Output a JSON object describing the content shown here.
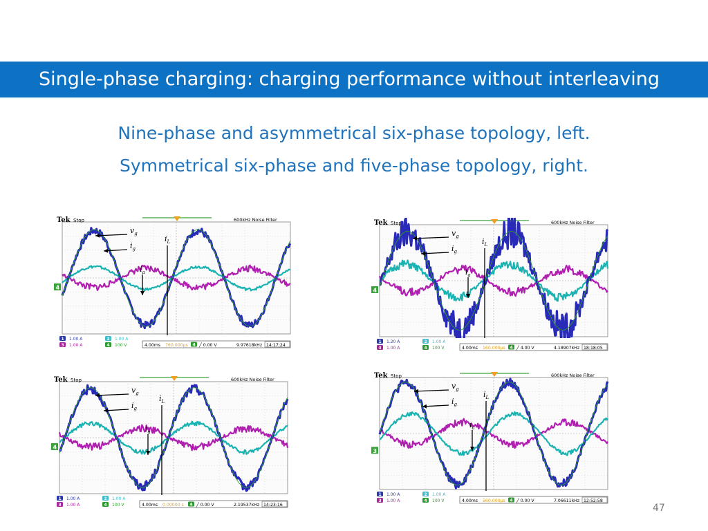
{
  "slide": {
    "title": "Single-phase charging: charging performance without interleaving",
    "subtitle_line1": "Nine-phase and asymmetrical six-phase topology, left.",
    "subtitle_line2": "Symmetrical six-phase and five-phase topology, right.",
    "page_number": "47"
  },
  "colors": {
    "title_bar": "#0e72c4",
    "subtitle_text": "#1f73bd",
    "trace_vg": "#2a2ab8",
    "trace_ig": "#1bb2b2",
    "trace_iL": "#b01fb0",
    "marker_outline": "#3a9a3a"
  },
  "scopes": [
    {
      "id": "top-left",
      "brand": "Tek",
      "state": "Stop",
      "filter": "600kHz  Noise Filter",
      "labels": {
        "vg": "v",
        "vg_sub": "g",
        "ig": "i",
        "ig_sub": "g",
        "iL": "i",
        "iL_sub": "L",
        "ia": "i",
        "ia_sub": "a"
      },
      "ch1": "1.00 A",
      "ch2": "1.00 A",
      "ch3": "1.00 A",
      "ch4": "100 V",
      "timebase": "4.00ms",
      "trigger_pos": "760.000μs",
      "trigger_level": "0.00 V",
      "frequency": "9.97618kHz",
      "time": "14:17:24",
      "ref_marker": "4"
    },
    {
      "id": "top-right",
      "brand": "Tek",
      "state": "Stop",
      "filter": "600kHz  Noise Filter",
      "labels": {
        "vg": "v",
        "vg_sub": "g",
        "ig": "i",
        "ig_sub": "g",
        "iL": "i",
        "iL_sub": "L",
        "ia": "i",
        "ia_sub": "a"
      },
      "ch1": "1.20 A",
      "ch2": "1.00 A",
      "ch3": "1.00 A",
      "ch4": "100 V",
      "timebase": "4.00ms",
      "trigger_pos": "160.000μs",
      "trigger_level": "4.00 V",
      "frequency": "4.18907kHz",
      "time": "18:18:05",
      "ref_marker": "4"
    },
    {
      "id": "bottom-left",
      "brand": "Tek",
      "state": "Stop",
      "filter": "600kHz  Noise Filter",
      "labels": {
        "vg": "v",
        "vg_sub": "g",
        "ig": "i",
        "ig_sub": "g",
        "iL": "i",
        "iL_sub": "L",
        "ia": "i",
        "ia_sub": "a"
      },
      "ch1": "1.00 A",
      "ch2": "1.00 A",
      "ch3": "1.00 A",
      "ch4": "100 V",
      "timebase": "4.00ms",
      "trigger_pos": "0.00000 s",
      "trigger_level": "0.00 V",
      "frequency": "2.19537kHz",
      "time": "14:23:16",
      "ref_marker": "4"
    },
    {
      "id": "bottom-right",
      "brand": "Tek",
      "state": "Stop",
      "filter": "600kHz  Noise Filter",
      "labels": {
        "vg": "v",
        "vg_sub": "g",
        "ig": "i",
        "ig_sub": "g",
        "iL": "i",
        "iL_sub": "L",
        "ia": "i",
        "ia_sub": "a"
      },
      "ch1": "1.00 A",
      "ch2": "1.00 A",
      "ch3": "1.00 A",
      "ch4": "100 V",
      "timebase": "4.00ms",
      "trigger_pos": "560.000μs",
      "trigger_level": "0.00 V",
      "frequency": "7.06611kHz",
      "time": "12:52:58",
      "ref_marker": "3"
    }
  ]
}
